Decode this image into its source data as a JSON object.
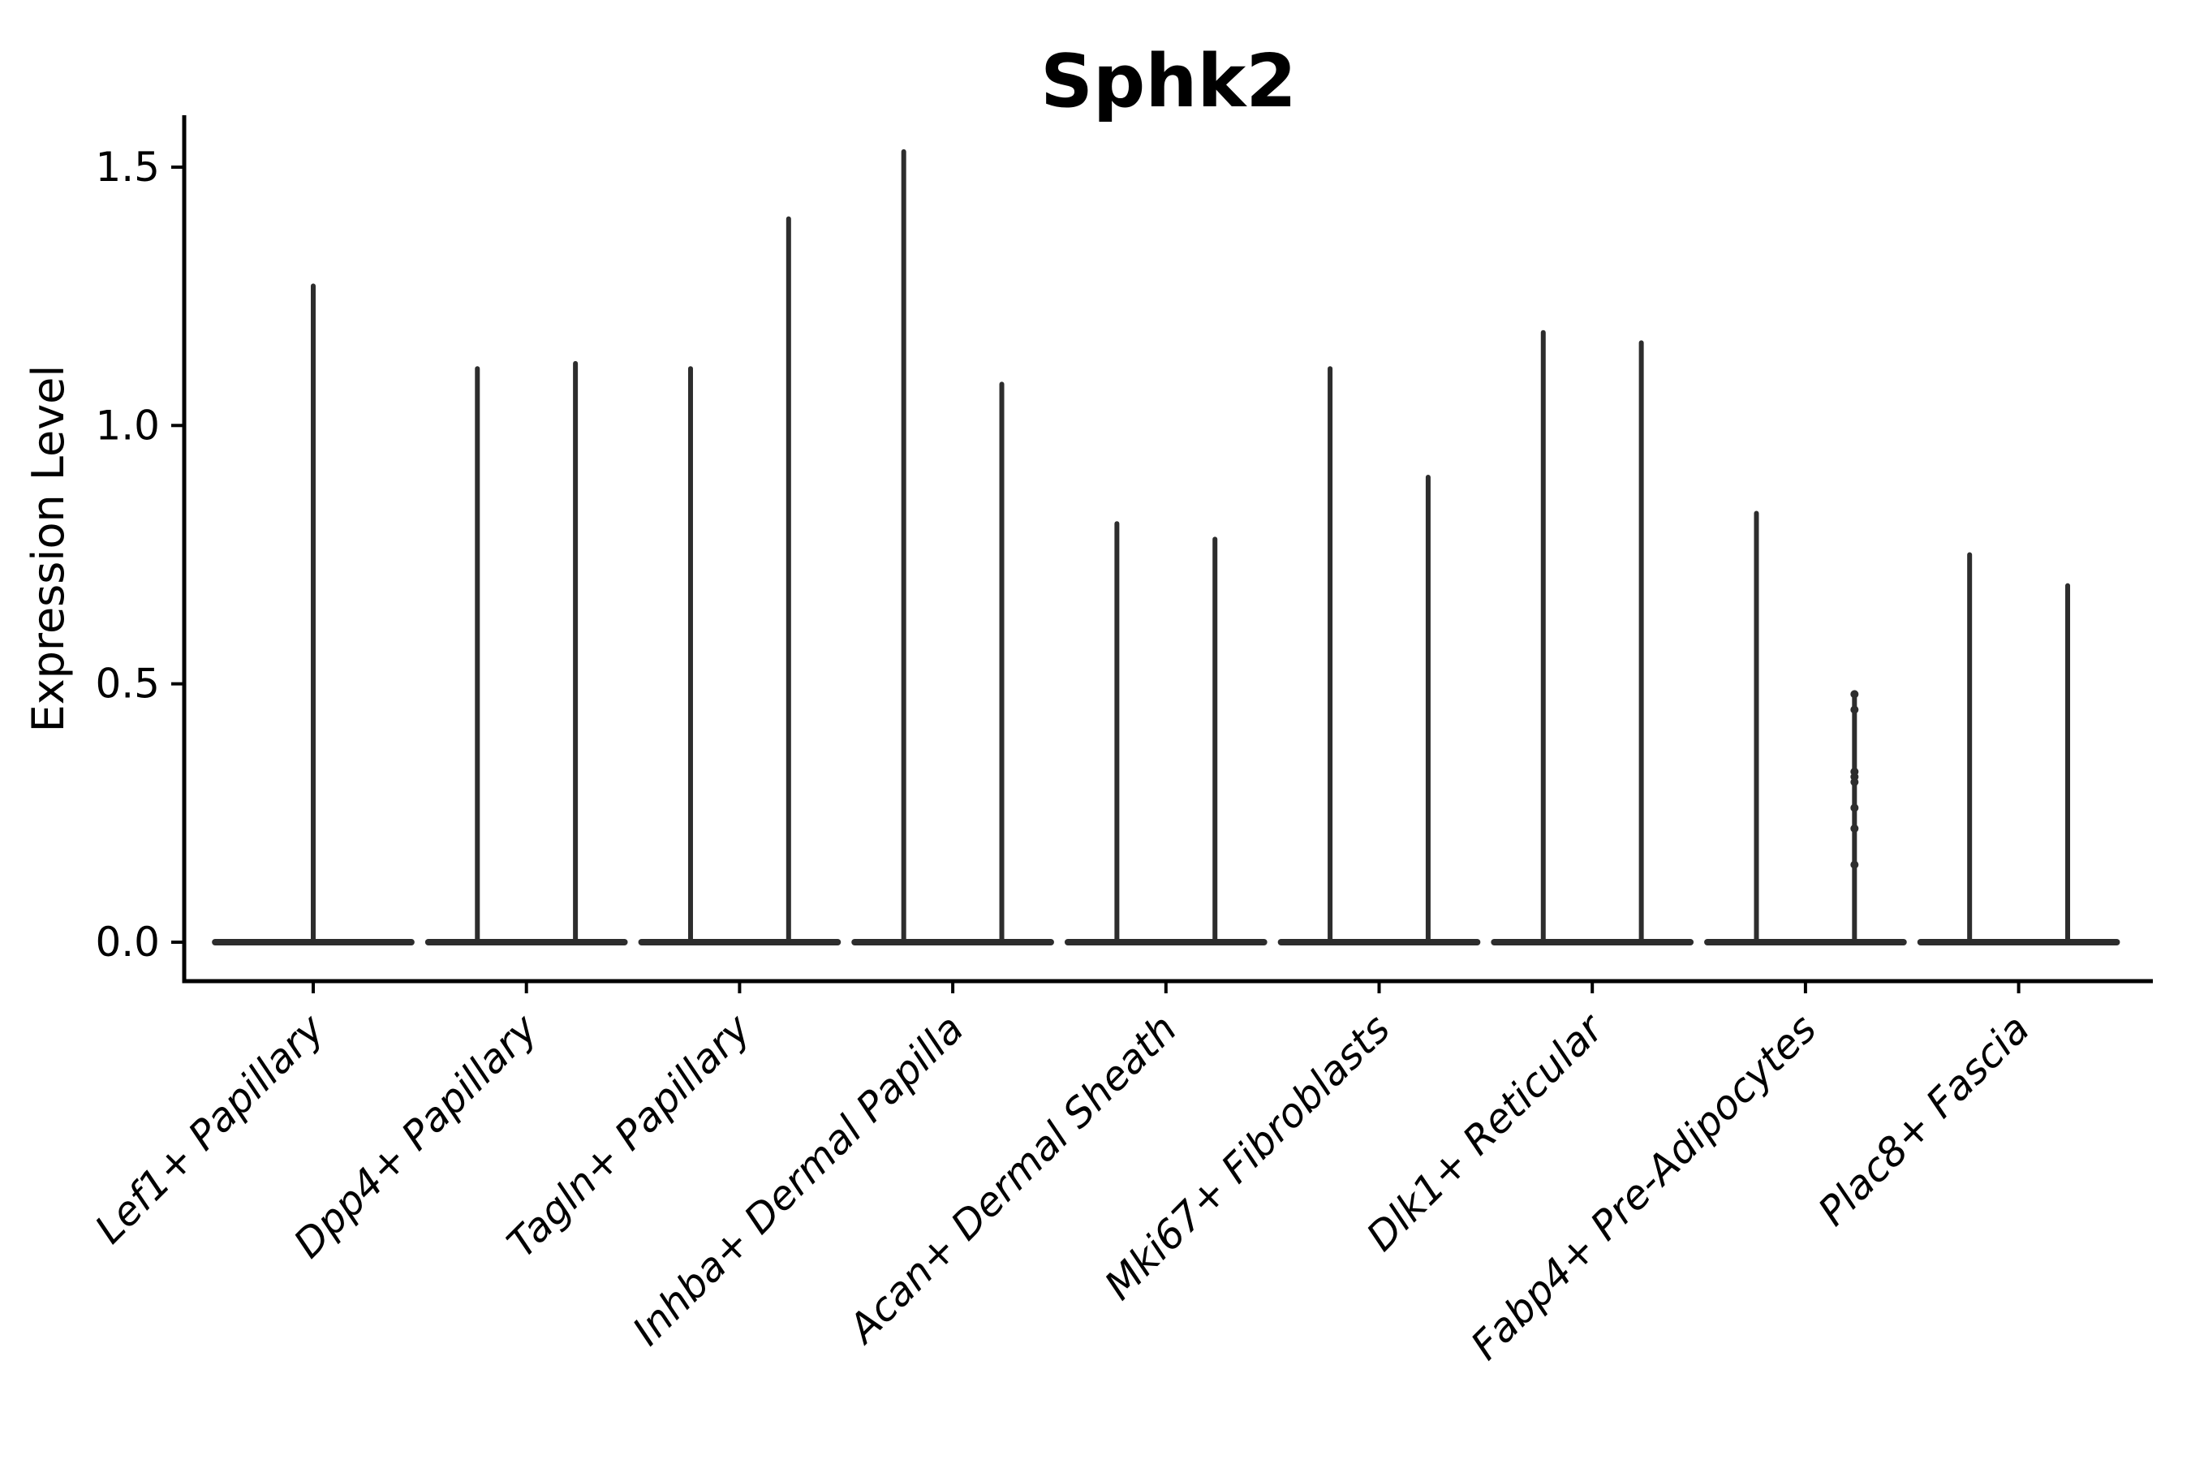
{
  "title": "Sphk2",
  "y_axis": {
    "label": "Expression Level",
    "tick_labels": [
      "0.0",
      "0.5",
      "1.0",
      "1.5"
    ]
  },
  "chart_data": {
    "type": "violin",
    "title": "Sphk2",
    "xlabel": "",
    "ylabel": "Expression Level",
    "ylim": [
      0,
      1.6
    ],
    "yticks": [
      0.0,
      0.5,
      1.0,
      1.5
    ],
    "ytick_labels": [
      "0.0",
      "0.5",
      "1.0",
      "1.5"
    ],
    "grid": false,
    "legend": "none",
    "x_tick_label_rotation_deg": 45,
    "x_tick_label_style": "italic",
    "categories": [
      "Lef1+ Papillary",
      "Dpp4+ Papillary",
      "Tagln+ Papillary",
      "Inhba+ Dermal Papilla",
      "Acan+ Dermal Sheath",
      "Mki67+ Fibroblasts",
      "Dlk1+ Reticular",
      "Fabp4+ Pre-Adipocytes",
      "Plac8+ Fascia"
    ],
    "description": "Each category shows extremely thin violin(s): a wide flat base at expression 0 (most cells zero) with narrow vertical spike(s) reaching the maximum expression value",
    "violins": [
      {
        "category": "Lef1+ Papillary",
        "spikes": [
          {
            "offset": 0,
            "max": 1.27
          }
        ]
      },
      {
        "category": "Dpp4+ Papillary",
        "spikes": [
          {
            "offset": -0.23,
            "max": 1.11
          },
          {
            "offset": 0.23,
            "max": 1.12
          }
        ]
      },
      {
        "category": "Tagln+ Papillary",
        "spikes": [
          {
            "offset": -0.23,
            "max": 1.11
          },
          {
            "offset": 0.23,
            "max": 1.4
          }
        ]
      },
      {
        "category": "Inhba+ Dermal Papilla",
        "spikes": [
          {
            "offset": -0.23,
            "max": 1.53
          },
          {
            "offset": 0.23,
            "max": 1.08
          }
        ]
      },
      {
        "category": "Acan+ Dermal Sheath",
        "spikes": [
          {
            "offset": -0.23,
            "max": 0.81
          },
          {
            "offset": 0.23,
            "max": 0.78
          }
        ]
      },
      {
        "category": "Mki67+ Fibroblasts",
        "spikes": [
          {
            "offset": -0.23,
            "max": 1.11
          },
          {
            "offset": 0.23,
            "max": 0.9
          }
        ]
      },
      {
        "category": "Dlk1+ Reticular",
        "spikes": [
          {
            "offset": -0.23,
            "max": 1.18
          },
          {
            "offset": 0.23,
            "max": 1.16
          }
        ]
      },
      {
        "category": "Fabp4+ Pre-Adipocytes",
        "spikes": [
          {
            "offset": -0.23,
            "max": 0.83
          },
          {
            "offset": 0.23,
            "max": 0.48,
            "points": [
              0.48,
              0.45,
              0.33,
              0.32,
              0.31,
              0.26,
              0.22,
              0.15
            ]
          }
        ]
      },
      {
        "category": "Plac8+ Fascia",
        "spikes": [
          {
            "offset": -0.23,
            "max": 0.75
          },
          {
            "offset": 0.23,
            "max": 0.69
          }
        ]
      }
    ],
    "base_half_width_frac": 0.46,
    "colors": {
      "violin": "#2d2d2d",
      "axis": "#000000",
      "text": "#000000",
      "background": "#ffffff"
    }
  }
}
